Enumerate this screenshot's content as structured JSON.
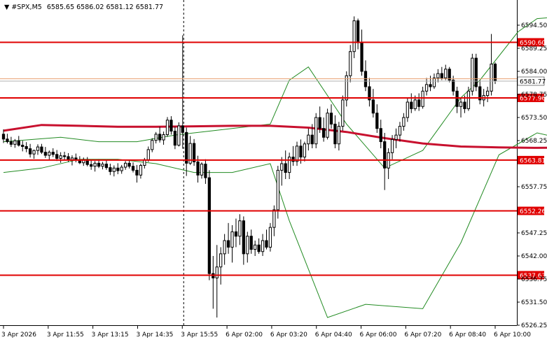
{
  "header": {
    "symbol": "#SPX,M5",
    "ohlc": "6585.65 6586.02 6581.12 6581.77"
  },
  "chart_data": {
    "type": "candlestick",
    "ylim": [
      6526.25,
      6594.5
    ],
    "y_ticks": [
      {
        "label": "6594.50",
        "value": 6594.5
      },
      {
        "label": "6589.25",
        "value": 6589.25
      },
      {
        "label": "6584.00",
        "value": 6584.0
      },
      {
        "label": "6578.75",
        "value": 6578.75
      },
      {
        "label": "6573.50",
        "value": 6573.5
      },
      {
        "label": "6568.25",
        "value": 6568.25
      },
      {
        "label": "6557.75",
        "value": 6557.75
      },
      {
        "label": "6547.25",
        "value": 6547.25
      },
      {
        "label": "6542.00",
        "value": 6542.0
      },
      {
        "label": "6536.75",
        "value": 6536.75
      },
      {
        "label": "6531.50",
        "value": 6531.5
      },
      {
        "label": "6526.25",
        "value": 6526.25
      }
    ],
    "x_ticks": [
      "3 Apr 2026",
      "3 Apr 11:55",
      "3 Apr 13:15",
      "3 Apr 14:35",
      "3 Apr 15:55",
      "6 Apr 02:00",
      "6 Apr 03:20",
      "6 Apr 04:40",
      "6 Apr 06:00",
      "6 Apr 07:20",
      "6 Apr 08:40",
      "6 Apr 10:00"
    ],
    "session_break_index": 4,
    "levels": [
      {
        "label": "6590.60",
        "value": 6590.6,
        "color": "#e00000"
      },
      {
        "label": "6577.96",
        "value": 6577.96,
        "color": "#e00000"
      },
      {
        "label": "6563.81",
        "value": 6563.81,
        "color": "#e00000"
      },
      {
        "label": "6552.26",
        "value": 6552.26,
        "color": "#e00000"
      },
      {
        "label": "6537.63",
        "value": 6537.63,
        "color": "#e00000"
      }
    ],
    "bid_label": "6581.77",
    "bid_value": 6581.77,
    "ask_value": 6582.3,
    "moving_average": [
      [
        0,
        6570.5
      ],
      [
        10,
        6571.8
      ],
      [
        20,
        6571.6
      ],
      [
        30,
        6571.4
      ],
      [
        40,
        6571.4
      ],
      [
        50,
        6571.5
      ],
      [
        60,
        6571.6
      ],
      [
        70,
        6571.6
      ],
      [
        80,
        6571.2
      ],
      [
        90,
        6570.2
      ],
      [
        100,
        6568.8
      ],
      [
        110,
        6567.6
      ],
      [
        120,
        6566.9
      ],
      [
        130,
        6566.7
      ],
      [
        140,
        6566.6
      ],
      [
        150,
        6566.7
      ],
      [
        160,
        6566.6
      ],
      [
        170,
        6566.5
      ],
      [
        180,
        6566.7
      ],
      [
        190,
        6566.9
      ],
      [
        200,
        6567.2
      ],
      [
        205,
        6567.4
      ]
    ],
    "bollinger": {
      "upper": [
        [
          0,
          6568
        ],
        [
          15,
          6569
        ],
        [
          25,
          6568
        ],
        [
          35,
          6568
        ],
        [
          45,
          6569.5
        ],
        [
          55,
          6570.5
        ],
        [
          70,
          6572
        ],
        [
          75,
          6582
        ],
        [
          80,
          6585
        ],
        [
          90,
          6572
        ],
        [
          100,
          6562
        ],
        [
          110,
          6566
        ],
        [
          115,
          6572
        ],
        [
          120,
          6578
        ],
        [
          125,
          6582
        ],
        [
          135,
          6593
        ],
        [
          140,
          6596
        ],
        [
          155,
          6597
        ],
        [
          160,
          6588
        ],
        [
          165,
          6582
        ],
        [
          175,
          6584
        ],
        [
          185,
          6586
        ],
        [
          190,
          6586
        ],
        [
          200,
          6586
        ],
        [
          205,
          6585
        ]
      ],
      "lower": [
        [
          0,
          6561
        ],
        [
          10,
          6562
        ],
        [
          20,
          6564
        ],
        [
          30,
          6564
        ],
        [
          40,
          6563
        ],
        [
          50,
          6561
        ],
        [
          60,
          6561
        ],
        [
          70,
          6563
        ],
        [
          75,
          6550
        ],
        [
          85,
          6528
        ],
        [
          95,
          6531
        ],
        [
          110,
          6530
        ],
        [
          120,
          6545
        ],
        [
          130,
          6565
        ],
        [
          140,
          6570
        ],
        [
          150,
          6568
        ],
        [
          155,
          6560
        ],
        [
          160,
          6557
        ],
        [
          170,
          6560
        ],
        [
          180,
          6566
        ],
        [
          185,
          6572
        ],
        [
          190,
          6575
        ],
        [
          200,
          6574
        ],
        [
          205,
          6574
        ]
      ]
    },
    "candles": [
      {
        "o": 6569.7,
        "h": 6570.8,
        "l": 6567.7,
        "c": 6568.6
      },
      {
        "o": 6568.6,
        "h": 6569.8,
        "l": 6567.6,
        "c": 6568.0
      },
      {
        "o": 6568.0,
        "h": 6569.1,
        "l": 6566.8,
        "c": 6567.4
      },
      {
        "o": 6567.4,
        "h": 6568.6,
        "l": 6566.6,
        "c": 6568.2
      },
      {
        "o": 6568.2,
        "h": 6569.3,
        "l": 6566.9,
        "c": 6567.2
      },
      {
        "o": 6567.2,
        "h": 6568.2,
        "l": 6565.8,
        "c": 6566.9
      },
      {
        "o": 6566.9,
        "h": 6567.9,
        "l": 6565.6,
        "c": 6566.4
      },
      {
        "o": 6566.4,
        "h": 6567.5,
        "l": 6564.4,
        "c": 6565.2
      },
      {
        "o": 6565.2,
        "h": 6566.2,
        "l": 6564.1,
        "c": 6566.0
      },
      {
        "o": 6566.0,
        "h": 6567.4,
        "l": 6565.0,
        "c": 6566.8
      },
      {
        "o": 6566.8,
        "h": 6567.5,
        "l": 6565.2,
        "c": 6565.6
      },
      {
        "o": 6565.6,
        "h": 6566.8,
        "l": 6564.3,
        "c": 6564.9
      },
      {
        "o": 6564.9,
        "h": 6566.0,
        "l": 6563.9,
        "c": 6565.6
      },
      {
        "o": 6565.6,
        "h": 6566.5,
        "l": 6564.5,
        "c": 6565.1
      },
      {
        "o": 6565.1,
        "h": 6566.1,
        "l": 6563.6,
        "c": 6564.2
      },
      {
        "o": 6564.2,
        "h": 6565.6,
        "l": 6563.2,
        "c": 6564.8
      },
      {
        "o": 6564.8,
        "h": 6565.7,
        "l": 6563.8,
        "c": 6564.6
      },
      {
        "o": 6564.6,
        "h": 6565.4,
        "l": 6563.4,
        "c": 6563.9
      },
      {
        "o": 6563.9,
        "h": 6564.9,
        "l": 6562.6,
        "c": 6564.3
      },
      {
        "o": 6564.3,
        "h": 6565.3,
        "l": 6563.3,
        "c": 6563.8
      },
      {
        "o": 6563.8,
        "h": 6564.7,
        "l": 6562.9,
        "c": 6563.2
      },
      {
        "o": 6563.2,
        "h": 6564.4,
        "l": 6562.5,
        "c": 6563.9
      },
      {
        "o": 6563.9,
        "h": 6564.5,
        "l": 6562.4,
        "c": 6562.8
      },
      {
        "o": 6562.8,
        "h": 6563.9,
        "l": 6561.6,
        "c": 6562.4
      },
      {
        "o": 6562.4,
        "h": 6563.6,
        "l": 6561.2,
        "c": 6563.1
      },
      {
        "o": 6563.1,
        "h": 6564.0,
        "l": 6562.0,
        "c": 6562.4
      },
      {
        "o": 6562.4,
        "h": 6563.4,
        "l": 6561.7,
        "c": 6562.9
      },
      {
        "o": 6562.9,
        "h": 6563.8,
        "l": 6561.6,
        "c": 6562.1
      },
      {
        "o": 6562.1,
        "h": 6563.0,
        "l": 6560.4,
        "c": 6561.2
      },
      {
        "o": 6561.2,
        "h": 6562.6,
        "l": 6560.1,
        "c": 6562.0
      },
      {
        "o": 6562.0,
        "h": 6563.1,
        "l": 6560.6,
        "c": 6561.4
      },
      {
        "o": 6561.4,
        "h": 6562.7,
        "l": 6560.7,
        "c": 6562.2
      },
      {
        "o": 6562.2,
        "h": 6563.6,
        "l": 6561.6,
        "c": 6563.1
      },
      {
        "o": 6563.1,
        "h": 6563.9,
        "l": 6561.9,
        "c": 6562.4
      },
      {
        "o": 6562.4,
        "h": 6563.3,
        "l": 6561.0,
        "c": 6561.5
      },
      {
        "o": 6561.5,
        "h": 6562.7,
        "l": 6558.7,
        "c": 6560.4
      },
      {
        "o": 6560.4,
        "h": 6563.0,
        "l": 6559.6,
        "c": 6562.6
      },
      {
        "o": 6562.6,
        "h": 6564.3,
        "l": 6561.9,
        "c": 6563.9
      },
      {
        "o": 6563.9,
        "h": 6566.9,
        "l": 6563.4,
        "c": 6566.2
      },
      {
        "o": 6566.2,
        "h": 6568.8,
        "l": 6565.6,
        "c": 6568.3
      },
      {
        "o": 6568.3,
        "h": 6570.2,
        "l": 6567.6,
        "c": 6569.7
      },
      {
        "o": 6569.7,
        "h": 6571.4,
        "l": 6567.8,
        "c": 6568.4
      },
      {
        "o": 6568.4,
        "h": 6570.3,
        "l": 6567.3,
        "c": 6569.6
      },
      {
        "o": 6569.6,
        "h": 6573.6,
        "l": 6569.1,
        "c": 6572.9
      },
      {
        "o": 6572.9,
        "h": 6573.8,
        "l": 6569.6,
        "c": 6570.4
      },
      {
        "o": 6570.4,
        "h": 6571.4,
        "l": 6566.3,
        "c": 6567.2
      },
      {
        "o": 6567.2,
        "h": 6572.4,
        "l": 6566.9,
        "c": 6571.6
      },
      {
        "o": 6571.6,
        "h": 6592.2,
        "l": 6566.4,
        "c": 6570.1
      },
      {
        "o": 6570.1,
        "h": 6571.2,
        "l": 6560.2,
        "c": 6563.1
      },
      {
        "o": 6563.1,
        "h": 6569.3,
        "l": 6562.7,
        "c": 6567.6
      },
      {
        "o": 6567.6,
        "h": 6568.6,
        "l": 6562.5,
        "c": 6563.4
      },
      {
        "o": 6563.4,
        "h": 6564.8,
        "l": 6558.7,
        "c": 6560.4
      },
      {
        "o": 6560.4,
        "h": 6563.3,
        "l": 6559.6,
        "c": 6562.9
      },
      {
        "o": 6562.9,
        "h": 6564.0,
        "l": 6558.4,
        "c": 6559.8
      },
      {
        "o": 6559.8,
        "h": 6561.5,
        "l": 6536.5,
        "c": 6538.0
      },
      {
        "o": 6538.0,
        "h": 6542.0,
        "l": 6530.0,
        "c": 6537.0
      },
      {
        "o": 6537.0,
        "h": 6544.5,
        "l": 6528.0,
        "c": 6539.5
      },
      {
        "o": 6539.5,
        "h": 6544.0,
        "l": 6535.5,
        "c": 6542.5
      },
      {
        "o": 6542.5,
        "h": 6547.0,
        "l": 6540.0,
        "c": 6545.5
      },
      {
        "o": 6545.5,
        "h": 6549.5,
        "l": 6542.5,
        "c": 6544.0
      },
      {
        "o": 6544.0,
        "h": 6549.0,
        "l": 6540.5,
        "c": 6547.5
      },
      {
        "o": 6547.5,
        "h": 6550.5,
        "l": 6544.0,
        "c": 6546.5
      },
      {
        "o": 6546.5,
        "h": 6551.5,
        "l": 6544.5,
        "c": 6550.0
      },
      {
        "o": 6550.0,
        "h": 6551.0,
        "l": 6540.0,
        "c": 6542.5
      },
      {
        "o": 6542.5,
        "h": 6547.5,
        "l": 6540.5,
        "c": 6546.5
      },
      {
        "o": 6546.5,
        "h": 6548.0,
        "l": 6542.5,
        "c": 6543.5
      },
      {
        "o": 6543.5,
        "h": 6545.5,
        "l": 6542.0,
        "c": 6544.5
      },
      {
        "o": 6544.5,
        "h": 6546.0,
        "l": 6542.5,
        "c": 6543.0
      },
      {
        "o": 6543.0,
        "h": 6547.0,
        "l": 6542.0,
        "c": 6545.5
      },
      {
        "o": 6545.5,
        "h": 6548.0,
        "l": 6543.5,
        "c": 6544.0
      },
      {
        "o": 6544.0,
        "h": 6549.5,
        "l": 6543.0,
        "c": 6548.5
      },
      {
        "o": 6548.5,
        "h": 6553.5,
        "l": 6546.5,
        "c": 6552.5
      },
      {
        "o": 6552.5,
        "h": 6562.5,
        "l": 6550.5,
        "c": 6561.5
      },
      {
        "o": 6561.5,
        "h": 6564.5,
        "l": 6558.0,
        "c": 6563.0
      },
      {
        "o": 6563.0,
        "h": 6566.0,
        "l": 6559.5,
        "c": 6561.0
      },
      {
        "o": 6561.0,
        "h": 6565.5,
        "l": 6559.5,
        "c": 6564.5
      },
      {
        "o": 6564.5,
        "h": 6567.0,
        "l": 6562.5,
        "c": 6563.5
      },
      {
        "o": 6563.5,
        "h": 6568.0,
        "l": 6562.5,
        "c": 6567.0
      },
      {
        "o": 6567.0,
        "h": 6568.5,
        "l": 6563.0,
        "c": 6564.5
      },
      {
        "o": 6564.5,
        "h": 6568.0,
        "l": 6563.5,
        "c": 6567.5
      },
      {
        "o": 6567.5,
        "h": 6571.0,
        "l": 6566.0,
        "c": 6569.5
      },
      {
        "o": 6569.5,
        "h": 6572.0,
        "l": 6566.5,
        "c": 6567.5
      },
      {
        "o": 6567.5,
        "h": 6574.5,
        "l": 6566.5,
        "c": 6573.5
      },
      {
        "o": 6573.5,
        "h": 6576.0,
        "l": 6570.0,
        "c": 6571.0
      },
      {
        "o": 6571.0,
        "h": 6573.5,
        "l": 6568.0,
        "c": 6569.0
      },
      {
        "o": 6569.0,
        "h": 6575.5,
        "l": 6568.5,
        "c": 6574.5
      },
      {
        "o": 6574.5,
        "h": 6576.5,
        "l": 6571.0,
        "c": 6572.0
      },
      {
        "o": 6572.0,
        "h": 6574.0,
        "l": 6566.5,
        "c": 6567.5
      },
      {
        "o": 6567.5,
        "h": 6572.5,
        "l": 6566.0,
        "c": 6571.5
      },
      {
        "o": 6571.5,
        "h": 6578.5,
        "l": 6570.5,
        "c": 6577.5
      },
      {
        "o": 6577.5,
        "h": 6584.0,
        "l": 6576.0,
        "c": 6583.0
      },
      {
        "o": 6583.0,
        "h": 6590.0,
        "l": 6581.5,
        "c": 6588.5
      },
      {
        "o": 6588.5,
        "h": 6596.5,
        "l": 6587.0,
        "c": 6595.5
      },
      {
        "o": 6595.5,
        "h": 6596.0,
        "l": 6589.0,
        "c": 6590.5
      },
      {
        "o": 6590.5,
        "h": 6593.5,
        "l": 6583.0,
        "c": 6584.0
      },
      {
        "o": 6584.0,
        "h": 6586.5,
        "l": 6579.5,
        "c": 6580.5
      },
      {
        "o": 6580.5,
        "h": 6582.5,
        "l": 6576.0,
        "c": 6577.5
      },
      {
        "o": 6577.5,
        "h": 6580.0,
        "l": 6573.5,
        "c": 6574.5
      },
      {
        "o": 6574.5,
        "h": 6576.5,
        "l": 6570.0,
        "c": 6571.0
      },
      {
        "o": 6571.0,
        "h": 6573.0,
        "l": 6566.5,
        "c": 6568.0
      },
      {
        "o": 6568.0,
        "h": 6570.0,
        "l": 6557.0,
        "c": 6562.0
      },
      {
        "o": 6562.0,
        "h": 6566.5,
        "l": 6559.5,
        "c": 6565.5
      },
      {
        "o": 6565.5,
        "h": 6569.5,
        "l": 6564.0,
        "c": 6568.5
      },
      {
        "o": 6568.5,
        "h": 6571.0,
        "l": 6566.5,
        "c": 6569.5
      },
      {
        "o": 6569.5,
        "h": 6572.5,
        "l": 6568.0,
        "c": 6571.5
      },
      {
        "o": 6571.5,
        "h": 6574.5,
        "l": 6570.5,
        "c": 6573.5
      },
      {
        "o": 6573.5,
        "h": 6578.0,
        "l": 6572.5,
        "c": 6577.0
      },
      {
        "o": 6577.0,
        "h": 6579.0,
        "l": 6574.5,
        "c": 6575.5
      },
      {
        "o": 6575.5,
        "h": 6578.5,
        "l": 6575.0,
        "c": 6577.5
      },
      {
        "o": 6577.5,
        "h": 6579.0,
        "l": 6575.0,
        "c": 6576.0
      },
      {
        "o": 6576.0,
        "h": 6580.5,
        "l": 6575.5,
        "c": 6579.5
      },
      {
        "o": 6579.5,
        "h": 6582.5,
        "l": 6578.5,
        "c": 6581.0
      },
      {
        "o": 6581.0,
        "h": 6583.0,
        "l": 6579.5,
        "c": 6580.5
      },
      {
        "o": 6580.5,
        "h": 6583.5,
        "l": 6580.0,
        "c": 6582.5
      },
      {
        "o": 6582.5,
        "h": 6584.5,
        "l": 6581.5,
        "c": 6583.5
      },
      {
        "o": 6583.5,
        "h": 6585.0,
        "l": 6582.0,
        "c": 6582.5
      },
      {
        "o": 6582.5,
        "h": 6585.5,
        "l": 6582.0,
        "c": 6584.5
      },
      {
        "o": 6584.5,
        "h": 6585.0,
        "l": 6581.5,
        "c": 6582.0
      },
      {
        "o": 6582.0,
        "h": 6583.0,
        "l": 6578.5,
        "c": 6579.5
      },
      {
        "o": 6579.5,
        "h": 6580.5,
        "l": 6574.5,
        "c": 6576.0
      },
      {
        "o": 6576.0,
        "h": 6578.0,
        "l": 6573.5,
        "c": 6577.0
      },
      {
        "o": 6577.0,
        "h": 6578.5,
        "l": 6574.5,
        "c": 6575.5
      },
      {
        "o": 6575.5,
        "h": 6580.5,
        "l": 6575.0,
        "c": 6579.5
      },
      {
        "o": 6579.5,
        "h": 6588.0,
        "l": 6578.5,
        "c": 6587.0
      },
      {
        "o": 6587.0,
        "h": 6588.0,
        "l": 6579.5,
        "c": 6580.5
      },
      {
        "o": 6580.5,
        "h": 6582.0,
        "l": 6576.5,
        "c": 6577.5
      },
      {
        "o": 6577.5,
        "h": 6580.0,
        "l": 6576.0,
        "c": 6578.5
      },
      {
        "o": 6578.5,
        "h": 6580.5,
        "l": 6577.0,
        "c": 6579.5
      },
      {
        "o": 6579.5,
        "h": 6592.5,
        "l": 6578.5,
        "c": 6585.65
      },
      {
        "o": 6585.65,
        "h": 6586.02,
        "l": 6581.12,
        "c": 6581.77
      }
    ]
  }
}
